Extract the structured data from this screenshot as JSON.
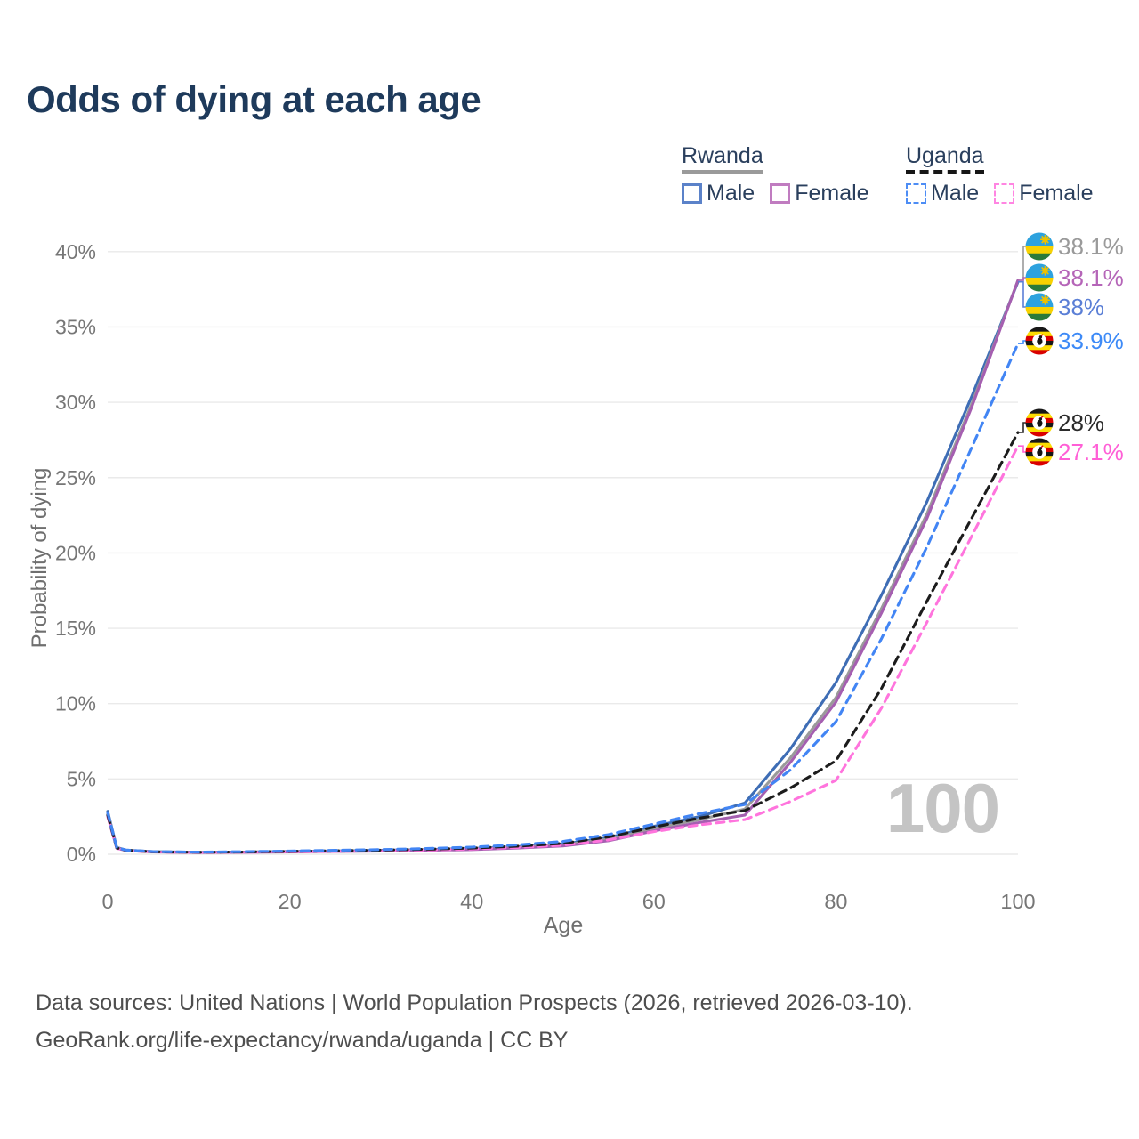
{
  "title": "Odds of dying at each age",
  "legend": {
    "rwanda": {
      "title": "Rwanda",
      "male_label": "Male",
      "female_label": "Female",
      "underline_color": "#9a9a9a",
      "underline_style": "solid",
      "male_swatch_color": "#5b82c9",
      "female_swatch_color": "#c07cc0"
    },
    "uganda": {
      "title": "Uganda",
      "male_label": "Male",
      "female_label": "Female",
      "underline_color": "#161616",
      "underline_style": "dashed",
      "male_swatch_color": "#4d8df5",
      "female_swatch_color": "#ff85e2"
    }
  },
  "footer": {
    "line1": "Data sources: United Nations | World Population Prospects (2026, retrieved 2026-03-10).",
    "line2": "GeoRank.org/life-expectancy/rwanda/uganda | CC BY"
  },
  "chart_data": {
    "type": "line",
    "title": "Odds of dying at each age",
    "xlabel": "Age",
    "ylabel": "Probability of dying",
    "xlim": [
      0,
      100
    ],
    "ylim_percent": [
      0,
      40
    ],
    "grid": "horizontal",
    "legend_position": "top-right",
    "watermark": "100",
    "x_ticks": [
      0,
      20,
      40,
      60,
      80,
      100
    ],
    "y_ticks": [
      {
        "value": 0,
        "label": "0%"
      },
      {
        "value": 5,
        "label": "5%"
      },
      {
        "value": 10,
        "label": "10%"
      },
      {
        "value": 15,
        "label": "15%"
      },
      {
        "value": 20,
        "label": "20%"
      },
      {
        "value": 25,
        "label": "25%"
      },
      {
        "value": 30,
        "label": "30%"
      },
      {
        "value": 35,
        "label": "35%"
      },
      {
        "value": 40,
        "label": "40%"
      }
    ],
    "ages": [
      0,
      1,
      2,
      5,
      10,
      15,
      20,
      25,
      30,
      35,
      40,
      45,
      50,
      55,
      60,
      65,
      70,
      75,
      80,
      85,
      90,
      95,
      100
    ],
    "series": [
      {
        "id": "rwanda-total",
        "name": "Rwanda",
        "country": "rwanda",
        "style": "solid",
        "color": "#9a9a9a",
        "end_label": "38.1%",
        "end_value": 38.1,
        "label_color": "#9a9a9a",
        "values": [
          2.7,
          0.42,
          0.26,
          0.16,
          0.12,
          0.14,
          0.17,
          0.2,
          0.24,
          0.29,
          0.35,
          0.46,
          0.62,
          1.0,
          1.7,
          2.3,
          3.0,
          6.4,
          10.4,
          16.3,
          22.6,
          30.0,
          38.1
        ]
      },
      {
        "id": "rwanda-female",
        "name": "Rwanda Female",
        "country": "rwanda",
        "style": "solid",
        "color": "#a55fb0",
        "end_label": "38.1%",
        "end_value": 38.1,
        "label_color": "#b565b8",
        "values": [
          2.55,
          0.4,
          0.25,
          0.15,
          0.11,
          0.13,
          0.15,
          0.18,
          0.21,
          0.26,
          0.31,
          0.41,
          0.55,
          0.9,
          1.55,
          2.1,
          2.6,
          6.1,
          10.1,
          16.0,
          22.3,
          29.8,
          38.1
        ]
      },
      {
        "id": "rwanda-male",
        "name": "Rwanda Male",
        "country": "rwanda",
        "style": "solid",
        "color": "#3e6db5",
        "end_label": "38%",
        "end_value": 38.0,
        "label_color": "#5b7fd6",
        "values": [
          2.85,
          0.45,
          0.28,
          0.17,
          0.13,
          0.15,
          0.19,
          0.22,
          0.26,
          0.31,
          0.38,
          0.5,
          0.68,
          1.1,
          1.85,
          2.5,
          3.4,
          7.0,
          11.4,
          17.2,
          23.4,
          30.5,
          38.0
        ]
      },
      {
        "id": "uganda-male",
        "name": "Uganda Male",
        "country": "uganda",
        "style": "dashed",
        "color": "#4285f4",
        "end_label": "33.9%",
        "end_value": 33.9,
        "label_color": "#3d8af7",
        "values": [
          2.75,
          0.44,
          0.28,
          0.17,
          0.14,
          0.17,
          0.21,
          0.26,
          0.31,
          0.38,
          0.47,
          0.62,
          0.85,
          1.3,
          2.0,
          2.7,
          3.3,
          5.6,
          8.8,
          14.3,
          20.4,
          27.1,
          33.9
        ]
      },
      {
        "id": "uganda-total",
        "name": "Uganda",
        "country": "uganda",
        "style": "dashed",
        "color": "#1c1c1c",
        "end_label": "28%",
        "end_value": 28.0,
        "label_color": "#2b2b2b",
        "values": [
          2.6,
          0.42,
          0.26,
          0.16,
          0.13,
          0.15,
          0.19,
          0.23,
          0.27,
          0.33,
          0.41,
          0.53,
          0.72,
          1.15,
          1.8,
          2.4,
          2.9,
          4.4,
          6.2,
          11.0,
          16.8,
          22.4,
          28.0
        ]
      },
      {
        "id": "uganda-female",
        "name": "Uganda Female",
        "country": "uganda",
        "style": "dashed",
        "color": "#ff74dd",
        "end_label": "27.1%",
        "end_value": 27.1,
        "label_color": "#ff5fd6",
        "values": [
          2.5,
          0.4,
          0.24,
          0.15,
          0.11,
          0.13,
          0.16,
          0.19,
          0.23,
          0.28,
          0.35,
          0.45,
          0.6,
          0.95,
          1.5,
          1.95,
          2.3,
          3.5,
          4.9,
          9.7,
          15.4,
          21.2,
          27.1
        ]
      }
    ]
  }
}
